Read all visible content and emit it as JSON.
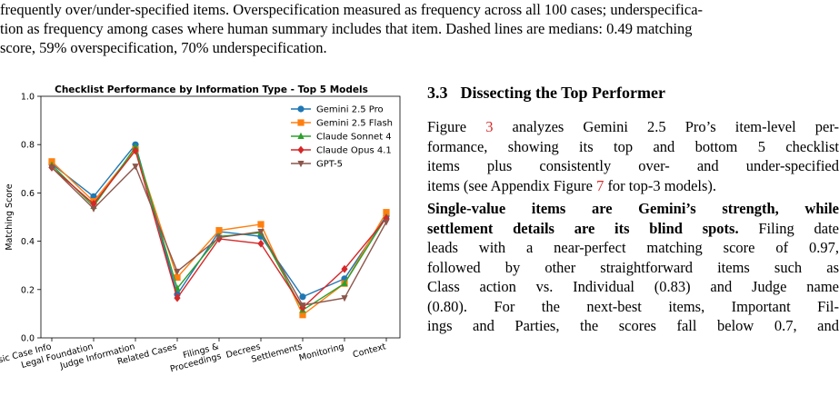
{
  "caption_lines": [
    "frequently over/under-specified items. Overspecification measured as frequency across all 100 cases; underspecifica-",
    "tion as frequency among cases where human summary includes that item. Dashed lines are medians: 0.49 matching",
    "score, 59% overspecification, 70% underspecification."
  ],
  "section": {
    "number": "3.3",
    "title": "Dissecting the Top Performer"
  },
  "para1": {
    "l1_pre": "Figure ",
    "l1_ref": "3",
    "l1_post": " analyzes Gemini 2.5 Pro’s item-level per-",
    "l2": "formance, showing its top and bottom 5 checklist",
    "l3": "items plus consistently over- and under-specified",
    "l4_pre": "items (see Appendix Figure ",
    "l4_ref": "7",
    "l4_post": " for top-3 models)."
  },
  "para2": {
    "l1": "Single-value items are Gemini’s strength, while",
    "l2_bold": "settlement details are its blind spots.",
    "l2_rest": " Filing date",
    "l3": "leads with a near-perfect matching score of 0.97,",
    "l4": "followed by other straightforward items such as",
    "l5": "Class action vs. Individual (0.83) and Judge name",
    "l6": "(0.80).  For the next-best items, Important Fil-",
    "l7": "ings and Parties, the scores fall below 0.7, and"
  },
  "chart_data": {
    "type": "line",
    "title": "Checklist Performance by Information Type - Top 5 Models",
    "ylabel": "Matching Score",
    "xlabel": "",
    "ylim": [
      0.0,
      1.0
    ],
    "yticks": [
      "0.0",
      "0.2",
      "0.4",
      "0.6",
      "0.8",
      "1.0"
    ],
    "grid": false,
    "legend_position": "top-right",
    "categories": [
      "Basic Case Info",
      "Legal Foundation",
      "Judge Information",
      "Related Cases",
      "Filings & Proceedings",
      "Decrees",
      "Settlements",
      "Monitoring",
      "Context"
    ],
    "category_lines": [
      [
        "Basic Case Info"
      ],
      [
        "Legal Foundation"
      ],
      [
        "Judge Information"
      ],
      [
        "Related Cases"
      ],
      [
        "Filings &",
        "Proceedings"
      ],
      [
        "Decrees"
      ],
      [
        "Settlements"
      ],
      [
        "Monitoring"
      ],
      [
        "Context"
      ]
    ],
    "series": [
      {
        "name": "Gemini 2.5 Pro",
        "color": "#1f77b4",
        "marker": "circle",
        "values": [
          0.72,
          0.585,
          0.8,
          0.18,
          0.44,
          0.42,
          0.17,
          0.245,
          0.505
        ]
      },
      {
        "name": "Gemini 2.5 Flash",
        "color": "#ff7f0e",
        "marker": "square",
        "values": [
          0.73,
          0.565,
          0.78,
          0.25,
          0.445,
          0.47,
          0.095,
          0.225,
          0.52
        ]
      },
      {
        "name": "Claude Sonnet 4",
        "color": "#2ca02c",
        "marker": "triangle-up",
        "values": [
          0.715,
          0.545,
          0.79,
          0.205,
          0.42,
          0.435,
          0.115,
          0.225,
          0.5
        ]
      },
      {
        "name": "Claude Opus 4.1",
        "color": "#d62728",
        "marker": "diamond",
        "values": [
          0.705,
          0.555,
          0.775,
          0.165,
          0.41,
          0.39,
          0.125,
          0.285,
          0.495
        ]
      },
      {
        "name": "GPT-5",
        "color": "#8c564b",
        "marker": "triangle-down",
        "values": [
          0.705,
          0.535,
          0.71,
          0.275,
          0.415,
          0.44,
          0.135,
          0.165,
          0.48
        ]
      }
    ]
  }
}
